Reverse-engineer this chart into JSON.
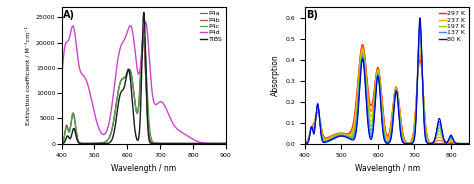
{
  "panel_A": {
    "title": "A)",
    "xlabel": "Wavelength / nm",
    "ylabel": "Extinction coefficient / M⁻¹cm⁻¹",
    "xlim": [
      400,
      900
    ],
    "ylim": [
      0,
      27000
    ],
    "yticks": [
      0,
      5000,
      10000,
      15000,
      20000,
      25000
    ],
    "xticks": [
      400,
      500,
      600,
      700,
      800,
      900
    ],
    "series_order": [
      "P4a",
      "P4b",
      "P4c",
      "P4d",
      "TIBS"
    ],
    "series": {
      "P4a": {
        "color": "#4472C4",
        "lw": 0.9
      },
      "P4b": {
        "color": "#C0504D",
        "lw": 0.9
      },
      "P4c": {
        "color": "#4AA74A",
        "lw": 0.9
      },
      "P4d": {
        "color": "#CC44CC",
        "lw": 1.0
      },
      "TIBS": {
        "color": "#1A1A1A",
        "lw": 1.0
      }
    }
  },
  "panel_B": {
    "title": "B)",
    "xlabel": "Wavelength / nm",
    "ylabel": "Absorption",
    "xlim": [
      400,
      850
    ],
    "ylim": [
      0,
      0.65
    ],
    "yticks": [
      0.0,
      0.1,
      0.2,
      0.3,
      0.4,
      0.5,
      0.6
    ],
    "xticks": [
      400,
      500,
      600,
      700,
      800
    ],
    "temperatures": [
      "297 K",
      "237 K",
      "197 K",
      "137 K",
      "80 K"
    ],
    "temp_colors": [
      "#FF2200",
      "#FFAA00",
      "#AACC00",
      "#4488FF",
      "#0000CC"
    ],
    "n_curves": 9,
    "gradient_colors": [
      "#FF2200",
      "#FF6600",
      "#FFAA00",
      "#DDCC00",
      "#88CC00",
      "#44CC44",
      "#4499FF",
      "#2244FF",
      "#0000CC"
    ]
  }
}
